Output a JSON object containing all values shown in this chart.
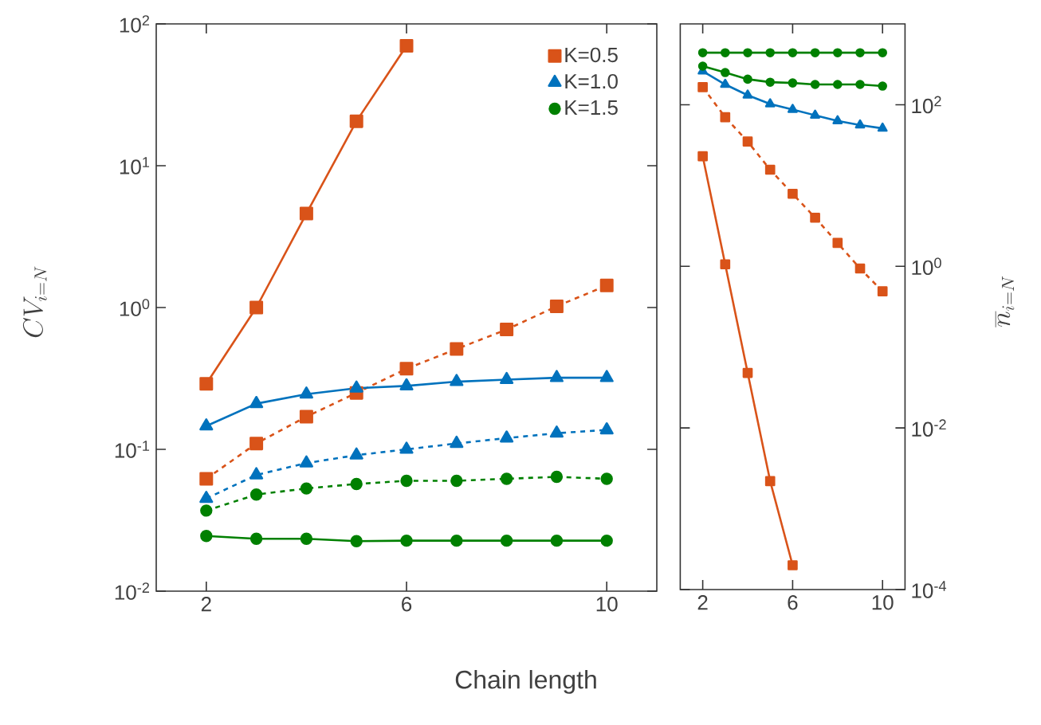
{
  "chart_data": [
    {
      "type": "line",
      "xlabel": "Chain length",
      "ylabel": "CV_{i=N}",
      "log": "y",
      "legend": "top right",
      "x": [
        2,
        3,
        4,
        5,
        6,
        7,
        8,
        9,
        10
      ],
      "xlim": [
        1,
        11
      ],
      "xticks": [
        2,
        6,
        10
      ],
      "ylim": [
        0.01,
        100
      ],
      "yticks": [
        {
          "value": 0.01,
          "label": "10$^{-2}$"
        },
        {
          "value": 0.1,
          "label": "10$^{-1}$"
        },
        {
          "value": 1,
          "label": "10$^{0}$"
        },
        {
          "value": 10,
          "label": "10$^{1}$"
        },
        {
          "value": 100,
          "label": "10$^{2}$"
        }
      ],
      "series": [
        {
          "name": "K=0.5",
          "color": "#d95319",
          "marker": "square",
          "line_style": "solid",
          "values": [
            0.29,
            1.0,
            4.6,
            20.6,
            70,
            null,
            null,
            null,
            null
          ]
        },
        {
          "color": "#d95319",
          "marker": "square",
          "line_style": "dashed",
          "values": [
            0.062,
            0.11,
            0.17,
            0.25,
            0.37,
            0.51,
            0.7,
            1.02,
            1.43
          ]
        },
        {
          "name": "K=1.0",
          "color": "#0072bd",
          "marker": "triangle",
          "line_style": "solid",
          "values": [
            0.146,
            0.21,
            0.245,
            0.27,
            0.28,
            0.3,
            0.31,
            0.32,
            0.32
          ]
        },
        {
          "color": "#0072bd",
          "marker": "triangle",
          "line_style": "dashed",
          "values": [
            0.045,
            0.066,
            0.08,
            0.091,
            0.1,
            0.11,
            0.12,
            0.13,
            0.137
          ]
        },
        {
          "name": "K=1.5",
          "color": "#008000",
          "marker": "circle",
          "line_style": "solid",
          "values": [
            0.0245,
            0.0234,
            0.0234,
            0.0225,
            0.0227,
            0.0227,
            0.0227,
            0.0227,
            0.0227
          ]
        },
        {
          "color": "#008000",
          "marker": "circle",
          "line_style": "dashed",
          "values": [
            0.037,
            0.048,
            0.053,
            0.057,
            0.06,
            0.06,
            0.062,
            0.064,
            0.062
          ]
        }
      ]
    },
    {
      "type": "line",
      "ylabel": "\\overline{n}_{i=N}",
      "log": "y",
      "x": [
        2,
        3,
        4,
        5,
        6,
        7,
        8,
        9,
        10
      ],
      "xlim": [
        1,
        11
      ],
      "xticks": [
        2,
        6,
        10
      ],
      "ylim": [
        0.0001,
        1000
      ],
      "yticks": [
        {
          "value": 0.0001,
          "label": "10$^{-4}$"
        },
        {
          "value": 0.01,
          "label": "10$^{-2}$"
        },
        {
          "value": 1,
          "label": "10$^{0}$"
        },
        {
          "value": 100,
          "label": "10$^{2}$"
        }
      ],
      "series": [
        {
          "color": "#d95319",
          "marker": "square",
          "line_style": "solid",
          "values": [
            23,
            1.06,
            0.048,
            0.0022,
            0.0002,
            null,
            null,
            null,
            null
          ]
        },
        {
          "color": "#d95319",
          "marker": "square",
          "line_style": "dashed",
          "values": [
            165,
            70,
            35,
            15.7,
            7.9,
            4.0,
            1.95,
            0.94,
            0.49
          ]
        },
        {
          "color": "#0072bd",
          "marker": "triangle",
          "line_style": "solid",
          "values": [
            260,
            178,
            131,
            102,
            87,
            74,
            63,
            56,
            51
          ]
        },
        {
          "color": "#008000",
          "marker": "circle",
          "line_style": "solid",
          "values": [
            440,
            440,
            440,
            440,
            440,
            440,
            440,
            440,
            440
          ]
        },
        {
          "color": "#008000",
          "marker": "circle",
          "line_style": "solid",
          "values": [
            300,
            250,
            207,
            190,
            186,
            178,
            178,
            178,
            170
          ]
        }
      ]
    }
  ]
}
